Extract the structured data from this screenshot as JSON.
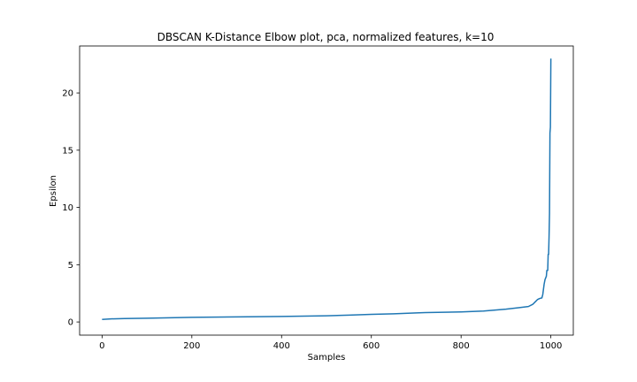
{
  "chart_data": {
    "type": "line",
    "title": "DBSCAN K-Distance Elbow plot, pca, normalized features, k=10",
    "xlabel": "Samples",
    "ylabel": "Epsilon",
    "xlim": [
      -50,
      1050
    ],
    "ylim": [
      -1.15,
      24.1
    ],
    "xticks": [
      0,
      200,
      400,
      600,
      800,
      1000
    ],
    "yticks": [
      0,
      5,
      10,
      15,
      20
    ],
    "grid": false,
    "color": "#1f77b4",
    "series": [
      {
        "x": [
          0,
          20,
          50,
          100,
          150,
          200,
          300,
          400,
          500,
          550,
          600,
          650,
          700,
          720,
          800,
          850,
          900,
          930,
          950,
          960,
          965,
          970,
          975,
          980,
          982,
          985,
          987,
          990,
          991,
          993,
          994,
          995,
          996,
          997,
          998,
          999,
          1000
        ],
        "y": [
          0.22,
          0.27,
          0.3,
          0.33,
          0.37,
          0.4,
          0.44,
          0.48,
          0.54,
          0.6,
          0.66,
          0.71,
          0.79,
          0.82,
          0.88,
          0.95,
          1.12,
          1.25,
          1.35,
          1.55,
          1.75,
          1.95,
          2.05,
          2.1,
          2.4,
          3.3,
          3.7,
          4.0,
          4.5,
          4.5,
          5.9,
          5.9,
          7.5,
          9.5,
          16.5,
          17.0,
          23.0
        ]
      }
    ]
  }
}
